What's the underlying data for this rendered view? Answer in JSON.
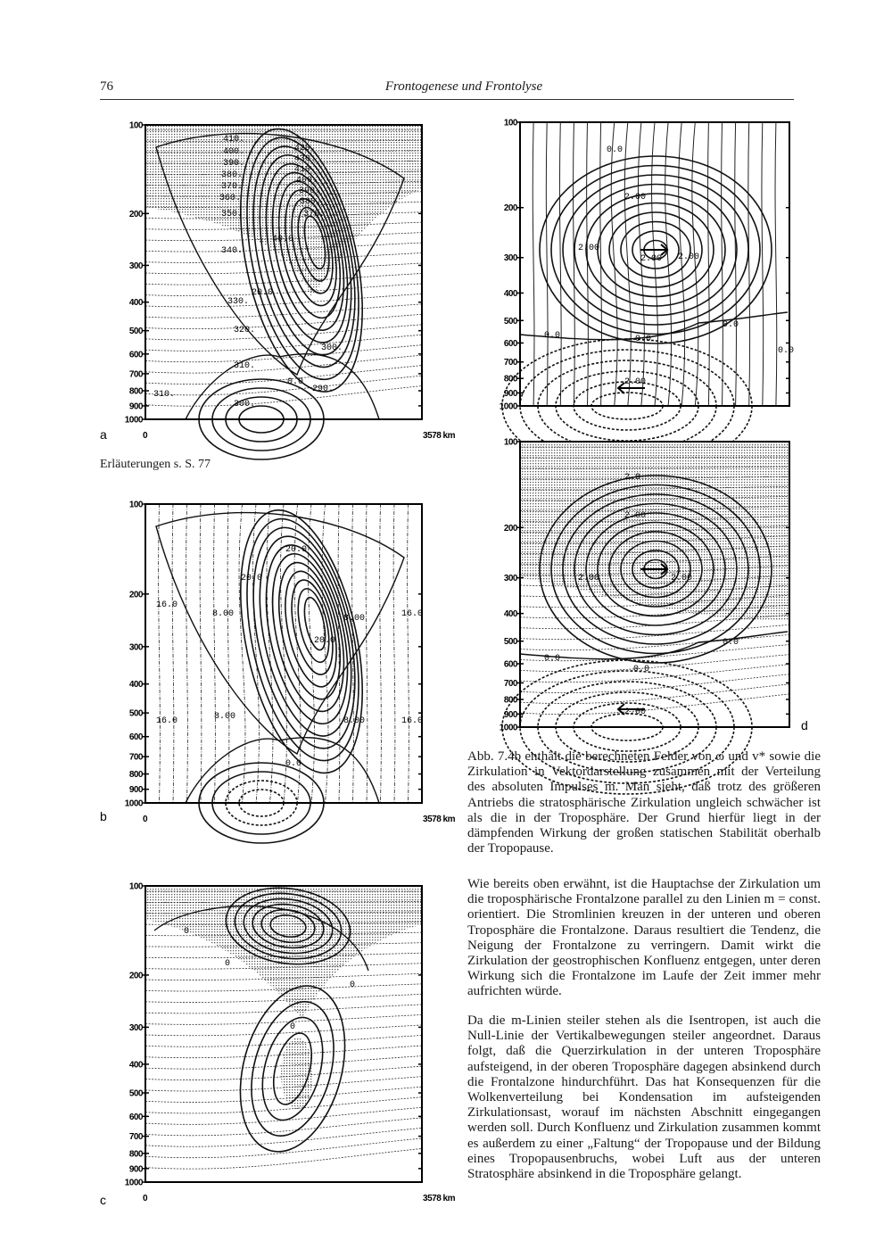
{
  "header": {
    "page_number": "76",
    "title": "Frontogenese und Frontolyse"
  },
  "caption_reference": "Erläuterungen s. S. 77",
  "figure": {
    "pressure_levels": [
      "100",
      "200",
      "300",
      "400",
      "500",
      "600",
      "700",
      "800",
      "900",
      "1000"
    ],
    "x_start": "0",
    "x_end": "3578 km",
    "panels": [
      {
        "letter": "a",
        "contour_labels": [
          "410.",
          "400.",
          "390.",
          "380.",
          "370.",
          "360.",
          "350.",
          "340.",
          "330.",
          "320.",
          "310.",
          "300.",
          "290.",
          "310.",
          "300.",
          "0.0",
          "20.0",
          "40.0",
          "420.",
          "430.",
          "410.",
          "400.",
          "390.",
          "380.",
          "370."
        ]
      },
      {
        "letter": "b",
        "contour_labels": [
          "16.0",
          "8.00",
          "16.0",
          "8.00",
          "20.0",
          "20.0",
          "20.0",
          "0.0",
          "8.00",
          "8.00",
          "16.0",
          "16.0"
        ]
      },
      {
        "letter": "c",
        "contour_labels": [
          "0",
          "0",
          "0",
          "0"
        ]
      },
      {
        "letter": "",
        "contour_labels": [
          "0.0",
          "2.00",
          "2.00",
          "2.00",
          "2.00",
          "0.0",
          "0.0",
          "0.0",
          "2.00",
          "0.0"
        ]
      },
      {
        "letter": "d",
        "contour_labels": [
          "2.0",
          "2.00",
          "2.00",
          "2.00",
          "0.0",
          "0.0",
          "0.0",
          "2.00"
        ]
      }
    ]
  },
  "paragraphs": [
    "Abb. 7.4b enthält die berechneten Felder von ω und v* sowie die Zirkulation in Vektordarstellung zusammen mit der Verteilung des absoluten Impulses m. Man sieht, daß trotz des größeren Antriebs die stratosphärische Zirkulation ungleich schwächer ist als die in der Troposphäre. Der Grund hierfür liegt in der dämpfenden Wirkung der großen statischen Stabilität oberhalb der Tropopause.",
    "Wie bereits oben erwähnt, ist die Hauptachse der Zirkulation um die troposphärische Frontalzone parallel zu den Linien m = const. orientiert. Die Stromlinien kreuzen in der unteren und oberen Troposphäre die Frontalzone. Daraus resultiert die Tendenz, die Neigung der Frontalzone zu verringern. Damit wirkt die Zirkulation der geostrophischen Konfluenz entgegen, unter deren Wirkung sich die Frontalzone im Laufe der Zeit immer mehr aufrichten würde.",
    "Da die m-Linien steiler stehen als die Isentropen, ist auch die Null-Linie der Vertikalbewegungen steiler angeordnet. Daraus folgt, daß die Querzirkulation in der unteren Troposphäre aufsteigend, in der oberen Troposphäre dagegen absinkend durch die Frontalzone hindurchführt. Das hat Konsequenzen für die Wolkenverteilung bei Kondensation im aufsteigenden Zirkulationsast, worauf im nächsten Abschnitt eingegangen werden soll. Durch Konfluenz und Zirkulation zusammen kommt es außerdem zu einer „Faltung“ der Tropopause und der Bildung eines Tropopausenbruchs, wobei Luft aus der unteren Stratosphäre absinkend in die Troposphäre gelangt."
  ]
}
